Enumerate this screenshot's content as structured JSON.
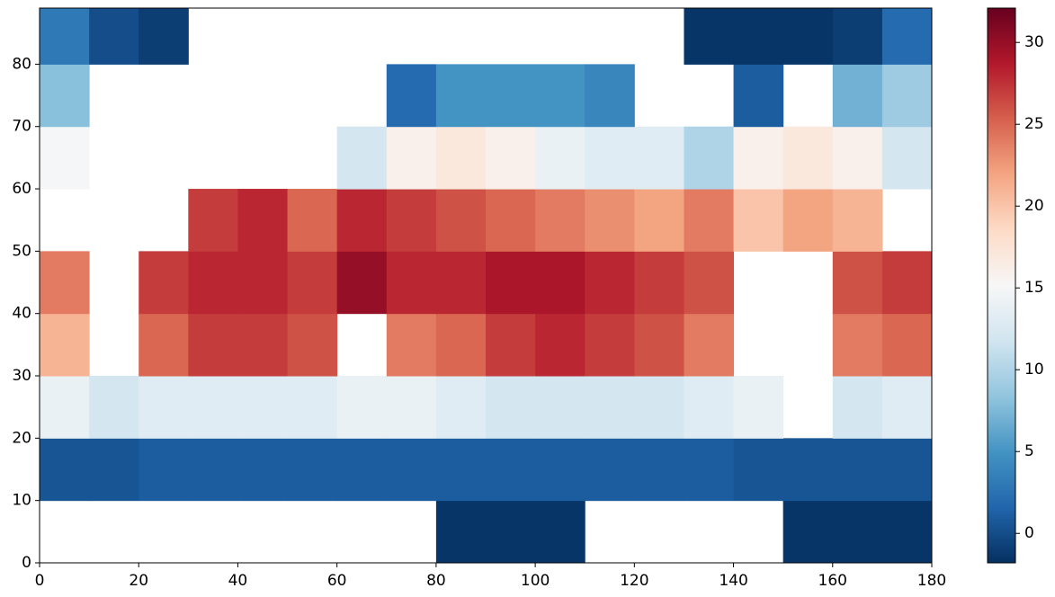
{
  "chart_data": {
    "type": "heatmap",
    "colormap": "RdBu_r",
    "x_edges": [
      0,
      10,
      20,
      30,
      40,
      50,
      60,
      70,
      80,
      90,
      100,
      110,
      120,
      130,
      140,
      150,
      160,
      170,
      180
    ],
    "y_edges": [
      0,
      10,
      20,
      30,
      40,
      50,
      60,
      70,
      80,
      89
    ],
    "values": [
      [
        null,
        null,
        null,
        null,
        null,
        null,
        null,
        null,
        -1.5,
        -1.5,
        -1.5,
        null,
        null,
        null,
        null,
        -1.5,
        -1.5,
        -1.5
      ],
      [
        0.5,
        0.5,
        1,
        1,
        1,
        1,
        1,
        1,
        1,
        1,
        1,
        1,
        1,
        1,
        0.5,
        0.5,
        0.5,
        0.5
      ],
      [
        14,
        12,
        13,
        13,
        13,
        13,
        14,
        14,
        13,
        12,
        12,
        12,
        12,
        13,
        14,
        null,
        12,
        13
      ],
      [
        21,
        null,
        25,
        27,
        27,
        26,
        null,
        24,
        25,
        27,
        28,
        27,
        26,
        24,
        null,
        null,
        24,
        25
      ],
      [
        24,
        null,
        27,
        28,
        28,
        27,
        30,
        28,
        28,
        29,
        29,
        28,
        27,
        26,
        null,
        null,
        26,
        27
      ],
      [
        null,
        null,
        null,
        27,
        28,
        25,
        28,
        27,
        26,
        25,
        24,
        23,
        22,
        24,
        20,
        22,
        21,
        null
      ],
      [
        15,
        null,
        null,
        null,
        null,
        null,
        12,
        16,
        17,
        16,
        14,
        13,
        13,
        10,
        16,
        17,
        16,
        12
      ],
      [
        8,
        null,
        null,
        null,
        null,
        null,
        null,
        2,
        5,
        5,
        5,
        4,
        null,
        null,
        1,
        null,
        7,
        9
      ],
      [
        3,
        0,
        -1,
        null,
        null,
        null,
        null,
        null,
        null,
        null,
        null,
        null,
        null,
        -1.5,
        -1.5,
        -1.5,
        -1,
        2
      ]
    ],
    "xlim": [
      0,
      180
    ],
    "ylim": [
      0,
      89
    ],
    "xticks": [
      0,
      20,
      40,
      60,
      80,
      100,
      120,
      140,
      160,
      180
    ],
    "yticks": [
      0,
      10,
      20,
      30,
      40,
      50,
      60,
      70,
      80
    ],
    "clim": [
      -1.8,
      32.1
    ],
    "colorbar_ticks": [
      0,
      5,
      10,
      15,
      20,
      25,
      30
    ]
  }
}
